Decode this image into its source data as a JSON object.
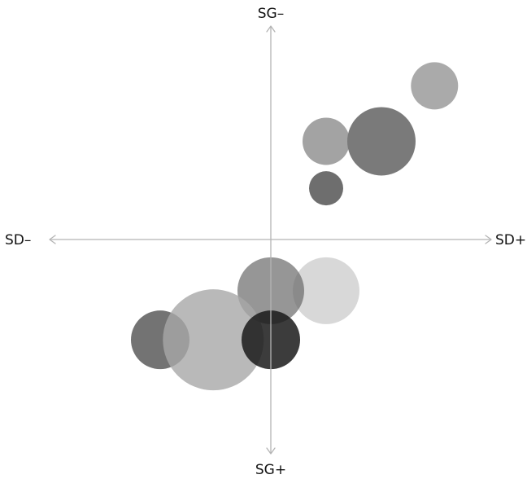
{
  "chart_data": {
    "type": "scatter",
    "subtype": "bubble",
    "x_axis": {
      "negative_label": "SD–",
      "positive_label": "SD+"
    },
    "y_axis": {
      "negative_label": "SG–",
      "positive_label": "SG+",
      "negative_end": "top"
    },
    "xlim": [
      -10,
      10
    ],
    "ylim": [
      -10,
      10
    ],
    "grid": false,
    "legend": "none",
    "points": [
      {
        "x": 7.4,
        "y": 7.2,
        "size": 29,
        "color": "#aaaaaa",
        "opacity": 1.0
      },
      {
        "x": 2.5,
        "y": 4.6,
        "size": 29,
        "color": "#a3a3a3",
        "opacity": 1.0
      },
      {
        "x": 5.0,
        "y": 4.6,
        "size": 42,
        "color": "#7a7a7a",
        "opacity": 1.0
      },
      {
        "x": 2.5,
        "y": 2.4,
        "size": 21,
        "color": "#6e6e6e",
        "opacity": 1.0
      },
      {
        "x": 2.5,
        "y": -2.4,
        "size": 41,
        "color": "#c8c8c8",
        "opacity": 0.7
      },
      {
        "x": 0.0,
        "y": -2.4,
        "size": 41,
        "color": "#6a6a6a",
        "opacity": 0.7
      },
      {
        "x": -5.0,
        "y": -4.7,
        "size": 36,
        "color": "#505050",
        "opacity": 0.8
      },
      {
        "x": -2.6,
        "y": -4.7,
        "size": 62,
        "color": "#a8a8a8",
        "opacity": 0.8
      },
      {
        "x": 0.0,
        "y": -4.7,
        "size": 36,
        "color": "#1a1a1a",
        "opacity": 0.85
      }
    ]
  }
}
